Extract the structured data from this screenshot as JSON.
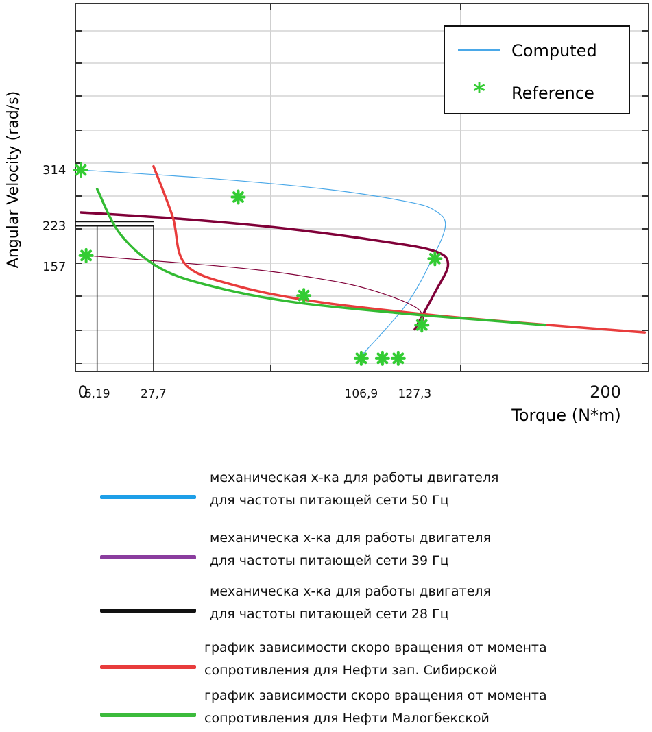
{
  "chart_data": {
    "type": "line",
    "xlabel": "Torque (N*m)",
    "ylabel": "Angular Velocity (rad/s)",
    "xlim": [
      0,
      220
    ],
    "ylim": [
      0,
      330
    ],
    "grid": true,
    "x_tick_labels": [
      {
        "value": 0,
        "label": "0"
      },
      {
        "value": 6.19,
        "label": "6,19"
      },
      {
        "value": 27.7,
        "label": "27,7"
      },
      {
        "value": 106.9,
        "label": "106,9"
      },
      {
        "value": 127.3,
        "label": "127,3"
      },
      {
        "value": 200,
        "label": "200"
      }
    ],
    "y_tick_labels": [
      {
        "value": 314,
        "label": "314"
      },
      {
        "value": 223,
        "label": "223"
      },
      {
        "value": 157,
        "label": "157"
      }
    ],
    "inner_legend": {
      "position": "top-right",
      "entries": [
        {
          "label": "Computed",
          "marker": "line",
          "color": "#4aa8e8"
        },
        {
          "label": "Reference",
          "marker": "asterisk",
          "color": "#33cc33"
        }
      ]
    },
    "series": [
      {
        "name": "50 Hz",
        "color": "#4aa8e8",
        "width": 1.2,
        "points": [
          [
            0,
            314
          ],
          [
            50,
            300
          ],
          [
            95,
            282
          ],
          [
            125,
            262
          ],
          [
            135,
            248
          ],
          [
            139,
            224
          ],
          [
            134,
            170
          ],
          [
            124,
            95
          ],
          [
            106.9,
            12
          ]
        ]
      },
      {
        "name": "39 Hz",
        "color": "#800038",
        "width": 3.5,
        "points": [
          [
            0,
            245
          ],
          [
            40,
            234
          ],
          [
            80,
            218
          ],
          [
            115,
            198
          ],
          [
            135,
            182
          ],
          [
            140,
            160
          ],
          [
            135,
            115
          ],
          [
            127.3,
            55
          ]
        ]
      },
      {
        "name": "28 Hz",
        "color": "#800038",
        "width": 1.2,
        "points": [
          [
            2,
            175
          ],
          [
            60,
            155
          ],
          [
            90,
            138
          ],
          [
            110,
            120
          ],
          [
            128,
            90
          ],
          [
            131,
            60
          ]
        ]
      },
      {
        "name": "Нефти зап. Сибирской",
        "color": "#e83c3c",
        "width": 3.5,
        "points": [
          [
            27.7,
            320
          ],
          [
            35,
            238
          ],
          [
            40,
            160
          ],
          [
            60,
            125
          ],
          [
            90,
            100
          ],
          [
            130,
            80
          ],
          [
            170,
            65
          ],
          [
            215,
            50
          ]
        ]
      },
      {
        "name": "Нефти Малогбекской",
        "color": "#33bb33",
        "width": 3.5,
        "points": [
          [
            6.19,
            283
          ],
          [
            15,
            210
          ],
          [
            30,
            155
          ],
          [
            50,
            125
          ],
          [
            80,
            100
          ],
          [
            120,
            82
          ],
          [
            160,
            68
          ],
          [
            177,
            62
          ]
        ]
      }
    ],
    "reference_points": [
      [
        0,
        314
      ],
      [
        2,
        175
      ],
      [
        60,
        270
      ],
      [
        135,
        170
      ],
      [
        85,
        110
      ],
      [
        130,
        62
      ],
      [
        106.9,
        8
      ],
      [
        115,
        8
      ],
      [
        121,
        8
      ]
    ],
    "guide_lines": [
      {
        "x": 6.19,
        "y": 223
      },
      {
        "x": 27.7,
        "y": 223
      }
    ]
  },
  "legend": {
    "items": [
      {
        "color": "#1e9fe8",
        "lines": [
          "механическая х-ка для работы двигателя",
          "для частоты питающей сети 50 Гц"
        ]
      },
      {
        "color": "#8a3d9e",
        "lines": [
          "механическа х-ка для работы двигателя",
          "для частоты питающей сети 39 Гц"
        ]
      },
      {
        "color": "#111111",
        "lines": [
          "механическа х-ка для работы двигателя",
          "для частоты питающей сети 28 Гц"
        ]
      },
      {
        "color": "#e83c3c",
        "lines": [
          "график зависимости скоро вращения от момента",
          "сопротивления для  Нефти зап. Сибирской"
        ]
      },
      {
        "color": "#3cbb3c",
        "lines": [
          "график зависимости скоро вращения от момента",
          "сопротивления для  Нефти  Малогбекской"
        ]
      }
    ]
  }
}
